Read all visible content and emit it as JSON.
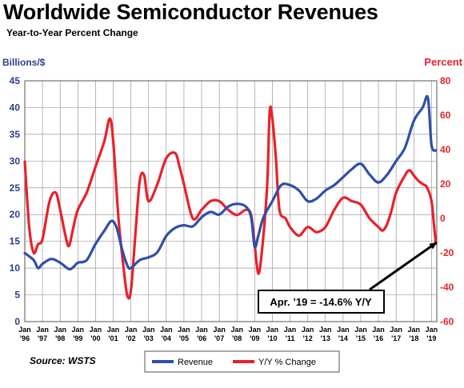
{
  "title": "Worldwide Semiconductor Revenues",
  "subtitle": "Year-to-Year Percent Change",
  "source": "Source: WSTS",
  "colors": {
    "revenue": "#2f4fa8",
    "yoy": "#e8212a",
    "grid": "#9a9a9a",
    "plot_bg": "#ffffff"
  },
  "chart_data": {
    "type": "line",
    "ylabel_left": "Billions/$",
    "ylabel_right": "Percent",
    "ylim_left": [
      0,
      45
    ],
    "ylim_right": [
      -60,
      80
    ],
    "yticks_left": [
      "0",
      "5",
      "10",
      "15",
      "20",
      "25",
      "30",
      "35",
      "40",
      "45"
    ],
    "yticks_right": [
      "-60",
      "-40",
      "-20",
      "0",
      "20",
      "40",
      "60",
      "80"
    ],
    "x_ticks": [
      "'96",
      "'97",
      "'98",
      "'99",
      "'00",
      "'01",
      "'02",
      "'03",
      "'04",
      "'05",
      "'06",
      "'07",
      "'08",
      "'09",
      "'10",
      "'11",
      "'12",
      "'13",
      "'14",
      "'15",
      "'16",
      "'17",
      "'18",
      "'19"
    ],
    "x_tick_prefix": "Jan",
    "grid": true,
    "legend_position": "bottom",
    "series": [
      {
        "name": "Revenue",
        "axis": "left",
        "x": [
          1996.0,
          1996.5,
          1996.75,
          1997.0,
          1997.5,
          1998.0,
          1998.5,
          1998.75,
          1999.0,
          1999.5,
          2000.0,
          2000.5,
          2000.9,
          2001.2,
          2001.5,
          2001.8,
          2002.0,
          2002.5,
          2003.0,
          2003.5,
          2004.0,
          2004.5,
          2005.0,
          2005.5,
          2006.0,
          2006.5,
          2007.0,
          2007.5,
          2008.0,
          2008.5,
          2008.8,
          2009.0,
          2009.2,
          2009.5,
          2010.0,
          2010.5,
          2011.0,
          2011.5,
          2012.0,
          2012.5,
          2013.0,
          2013.5,
          2014.0,
          2014.5,
          2015.0,
          2015.5,
          2016.0,
          2016.5,
          2017.0,
          2017.5,
          2018.0,
          2018.5,
          2018.8,
          2019.0,
          2019.25
        ],
        "values": [
          12.8,
          11.5,
          10.0,
          10.8,
          11.7,
          11.0,
          9.8,
          10.2,
          11.0,
          11.5,
          14.5,
          17.0,
          18.8,
          17.5,
          13.5,
          10.5,
          10.0,
          11.5,
          12.0,
          13.0,
          16.0,
          17.5,
          18.0,
          17.8,
          19.5,
          20.5,
          20.0,
          21.5,
          22.0,
          21.5,
          19.5,
          14.0,
          16.0,
          19.5,
          22.5,
          25.5,
          25.5,
          24.5,
          22.5,
          23.0,
          24.5,
          25.5,
          27.0,
          28.5,
          29.5,
          27.5,
          26.0,
          27.5,
          30.0,
          32.5,
          37.5,
          40.0,
          41.8,
          33.0,
          32.0
        ]
      },
      {
        "name": "Y/Y % Change",
        "axis": "right",
        "x": [
          1996.0,
          1996.25,
          1996.5,
          1996.75,
          1997.0,
          1997.4,
          1997.75,
          1998.0,
          1998.3,
          1998.5,
          1998.75,
          1999.0,
          1999.5,
          2000.0,
          2000.5,
          2000.8,
          2001.0,
          2001.3,
          2001.6,
          2001.8,
          2002.0,
          2002.25,
          2002.5,
          2002.75,
          2003.0,
          2003.5,
          2004.0,
          2004.5,
          2004.75,
          2005.0,
          2005.5,
          2006.0,
          2006.5,
          2007.0,
          2007.5,
          2008.0,
          2008.5,
          2008.8,
          2009.0,
          2009.2,
          2009.4,
          2009.7,
          2009.85,
          2010.0,
          2010.2,
          2010.4,
          2010.75,
          2011.0,
          2011.5,
          2012.0,
          2012.5,
          2013.0,
          2013.5,
          2014.0,
          2014.5,
          2015.0,
          2015.5,
          2016.0,
          2016.25,
          2016.5,
          2016.75,
          2017.0,
          2017.5,
          2017.75,
          2018.0,
          2018.25,
          2018.5,
          2018.75,
          2019.0,
          2019.15,
          2019.25
        ],
        "values": [
          33,
          -5,
          -20,
          -15,
          -12,
          10,
          15,
          5,
          -10,
          -16,
          -5,
          5,
          15,
          30,
          45,
          58,
          45,
          0,
          -30,
          -45,
          -42,
          -10,
          22,
          25,
          10,
          20,
          35,
          38,
          30,
          20,
          0,
          5,
          10,
          10,
          5,
          2,
          5,
          2,
          -15,
          -32,
          -20,
          18,
          62,
          58,
          35,
          5,
          0,
          -5,
          -10,
          -5,
          -8,
          -5,
          5,
          12,
          10,
          8,
          0,
          -5,
          -7,
          -3,
          5,
          15,
          25,
          28,
          25,
          22,
          20,
          18,
          10,
          -5,
          -14.6
        ]
      }
    ],
    "annotation": "Apr. ’19 = -14.6% Y/Y"
  }
}
